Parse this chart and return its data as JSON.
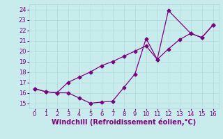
{
  "line1_x": [
    0,
    1,
    2,
    3,
    4,
    5,
    6,
    7,
    8,
    9,
    10,
    11,
    12,
    14,
    15,
    16
  ],
  "line1_y": [
    16.4,
    16.1,
    16.0,
    16.0,
    15.5,
    15.0,
    15.1,
    15.2,
    16.5,
    17.8,
    21.2,
    19.2,
    23.9,
    21.7,
    21.3,
    22.5
  ],
  "line2_x": [
    0,
    1,
    2,
    3,
    4,
    5,
    6,
    7,
    8,
    9,
    10,
    11,
    12,
    13,
    14,
    15,
    16
  ],
  "line2_y": [
    16.4,
    16.1,
    16.0,
    17.0,
    17.5,
    18.0,
    18.6,
    19.0,
    19.5,
    20.0,
    20.5,
    19.2,
    20.2,
    21.1,
    21.7,
    21.3,
    22.5
  ],
  "line_color": "#800080",
  "marker": "D",
  "markersize": 2.5,
  "linewidth": 0.9,
  "xlabel": "Windchill (Refroidissement éolien,°C)",
  "xlim": [
    -0.5,
    16.5
  ],
  "ylim": [
    14.5,
    24.5
  ],
  "xticks": [
    0,
    1,
    2,
    3,
    4,
    5,
    6,
    7,
    8,
    9,
    10,
    11,
    12,
    13,
    14,
    15,
    16
  ],
  "yticks": [
    15,
    16,
    17,
    18,
    19,
    20,
    21,
    22,
    23,
    24
  ],
  "bg_color": "#c8ecec",
  "grid_color": "#aadddd",
  "tick_color": "#800080",
  "label_color": "#800080",
  "tick_fontsize": 6.0,
  "xlabel_fontsize": 7.0
}
